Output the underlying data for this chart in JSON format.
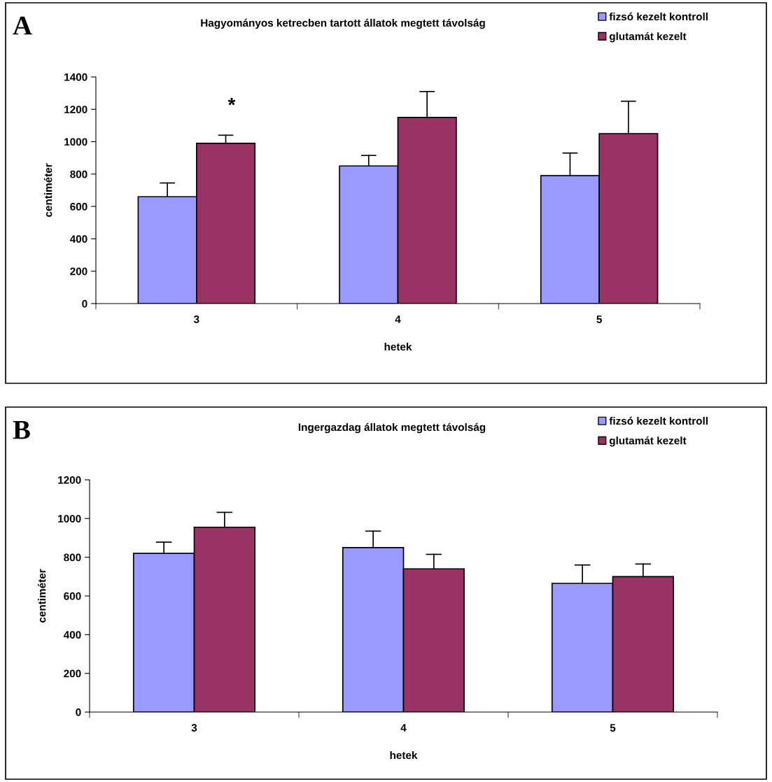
{
  "chart_data": [
    {
      "type": "bar",
      "title": "Hagyományos ketrecben tartott állatok megtett távolság",
      "xlabel": "hetek",
      "ylabel": "centiméter",
      "categories": [
        "3",
        "4",
        "5"
      ],
      "series": [
        {
          "name": "fizsó kezelt kontroll",
          "color": "#9999ff",
          "values": [
            660,
            850,
            790
          ],
          "errors": [
            [
              660,
              745
            ],
            [
              850,
              915
            ],
            [
              790,
              930
            ]
          ]
        },
        {
          "name": "glutamát kezelt",
          "color": "#993366",
          "values": [
            990,
            1150,
            1050
          ],
          "errors": [
            [
              990,
              1040
            ],
            [
              1150,
              1310
            ],
            [
              1050,
              1250
            ]
          ]
        }
      ],
      "ylim": [
        0,
        1400
      ],
      "yticks": [
        0,
        200,
        400,
        600,
        800,
        1000,
        1200,
        1400
      ],
      "grid": false,
      "legend": "top right",
      "annotations": [
        "A",
        "*"
      ]
    },
    {
      "type": "bar",
      "title": "Ingergazdag állatok megtett távolság",
      "xlabel": "hetek",
      "ylabel": "centiméter",
      "categories": [
        "3",
        "4",
        "5"
      ],
      "series": [
        {
          "name": "fizsó kezelt kontroll",
          "color": "#9999ff",
          "values": [
            820,
            850,
            665
          ],
          "errors": [
            [
              820,
              878
            ],
            [
              850,
              935
            ],
            [
              665,
              760
            ]
          ]
        },
        {
          "name": "glutamát kezelt",
          "color": "#993366",
          "values": [
            955,
            740,
            700
          ],
          "errors": [
            [
              955,
              1032
            ],
            [
              740,
              815
            ],
            [
              700,
              765
            ]
          ]
        }
      ],
      "ylim": [
        0,
        1200
      ],
      "yticks": [
        0,
        200,
        400,
        600,
        800,
        1000,
        1200
      ],
      "grid": false,
      "legend": "top right",
      "annotations": [
        "B"
      ]
    }
  ]
}
